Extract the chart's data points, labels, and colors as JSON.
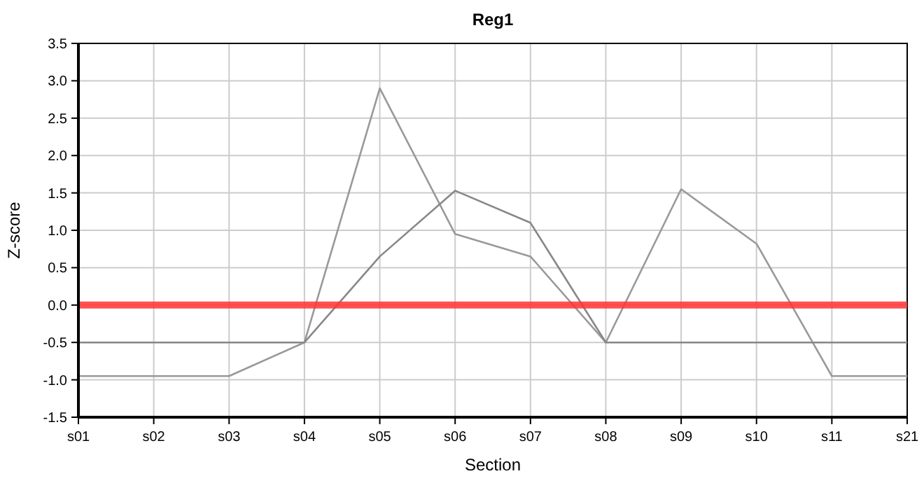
{
  "chart_data": {
    "type": "line",
    "title": "Reg1",
    "xlabel": "Section",
    "ylabel": "Z-score",
    "categories": [
      "s01",
      "s02",
      "s03",
      "s04",
      "s05",
      "s06",
      "s07",
      "s08",
      "s09",
      "s10",
      "s11",
      "s21"
    ],
    "series": [
      {
        "color": "#999999",
        "values": [
          -0.95,
          -0.95,
          -0.95,
          -0.5,
          2.9,
          0.95,
          0.65,
          -0.5,
          1.55,
          0.82,
          -0.95,
          -0.95
        ]
      },
      {
        "color": "#888888",
        "values": [
          -0.5,
          -0.5,
          -0.5,
          -0.5,
          0.65,
          1.53,
          1.1,
          -0.5,
          -0.5,
          -0.5,
          -0.5,
          -0.5
        ]
      }
    ],
    "ylim": [
      -1.5,
      3.5
    ],
    "yticks": [
      {
        "value": -1.5,
        "label": "-1.5"
      },
      {
        "value": -1,
        "label": "-1.0"
      },
      {
        "value": -0.5,
        "label": "-0.5"
      },
      {
        "value": 0,
        "label": "0.0"
      },
      {
        "value": 0.5,
        "label": "0.5"
      },
      {
        "value": 1,
        "label": "1.0"
      },
      {
        "value": 1.5,
        "label": "1.5"
      },
      {
        "value": 2,
        "label": "2.0"
      },
      {
        "value": 2.5,
        "label": "2.5"
      },
      {
        "value": 3,
        "label": "3.0"
      },
      {
        "value": 3.5,
        "label": "3.5"
      }
    ],
    "grid": true,
    "marker": "none",
    "line_style": "solid",
    "ref_lines": [
      {
        "axis": "y",
        "value": 0,
        "color": "#ff3333"
      }
    ]
  }
}
